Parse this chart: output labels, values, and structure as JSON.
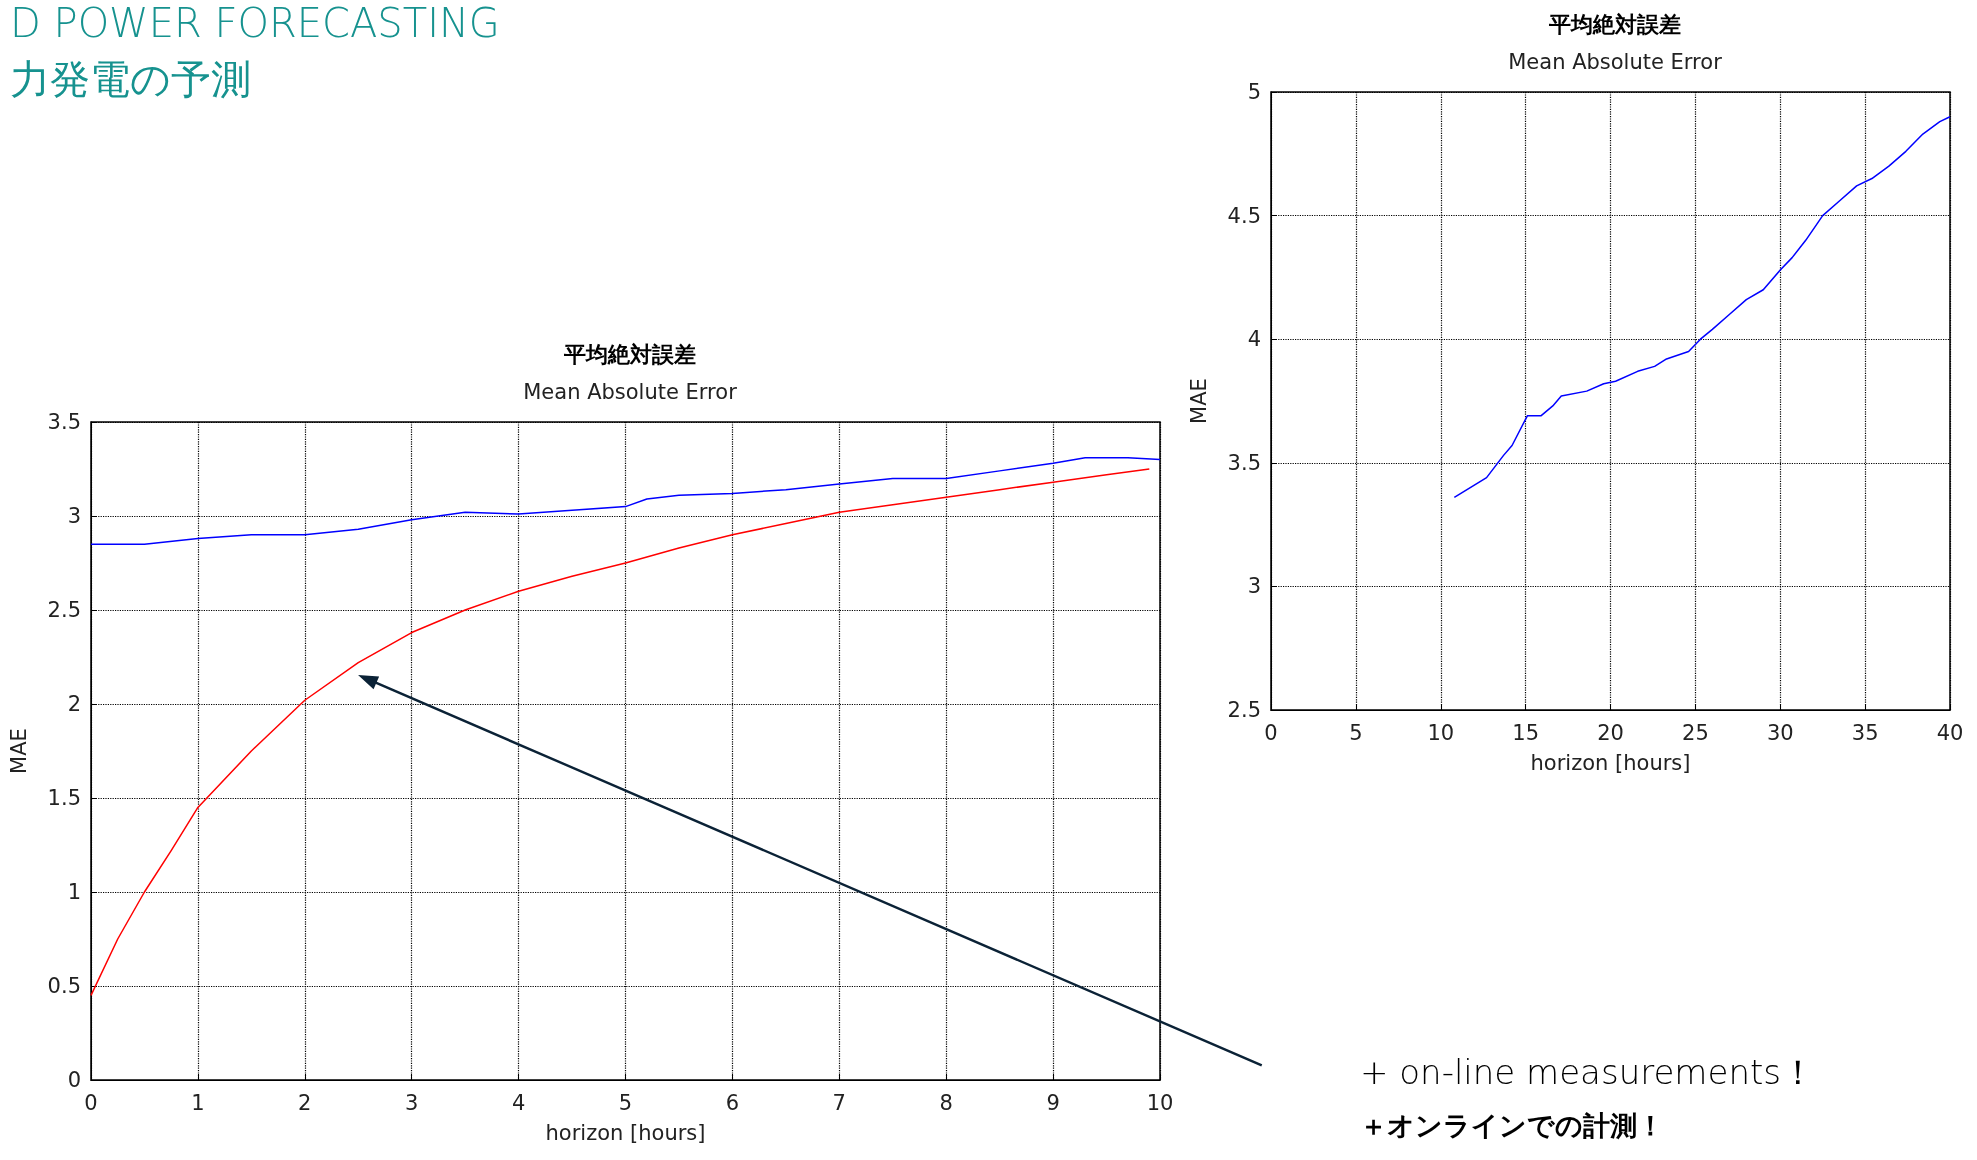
{
  "chart_data": [
    {
      "type": "other",
      "title": "D POWER FORECASTING",
      "subtitle": "力発電の予測"
    },
    {
      "type": "line",
      "title": "平均絶対誤差",
      "subtitle": "Mean Absolute Error",
      "xlabel": "horizon [hours]",
      "ylabel": "MAE",
      "xlim": [
        0,
        40
      ],
      "xticks": [
        0,
        5,
        10,
        15,
        20,
        25,
        30,
        35,
        40
      ],
      "ylim": [
        2.5,
        5
      ],
      "yticks": [
        2.5,
        3,
        3.5,
        4,
        4.5,
        5
      ],
      "grid": true,
      "marker": "none",
      "line_style": "solid",
      "series": [
        {
          "color": "#0000ff",
          "x": [
            10.8,
            12.7,
            13.7,
            14.2,
            15.1,
            15.9,
            16.6,
            17.1,
            18.6,
            19.6,
            20.3,
            21.6,
            22.6,
            23.3,
            24.6,
            25.3,
            26,
            27,
            28,
            29,
            30,
            30.7,
            31.5,
            32.5,
            33.5,
            34.5,
            35.4,
            36.4,
            37.4,
            38.4,
            39.4,
            40
          ],
          "values": [
            3.36,
            3.44,
            3.53,
            3.57,
            3.69,
            3.69,
            3.73,
            3.77,
            3.79,
            3.82,
            3.83,
            3.87,
            3.89,
            3.92,
            3.95,
            4.0,
            4.04,
            4.1,
            4.16,
            4.2,
            4.28,
            4.33,
            4.4,
            4.5,
            4.56,
            4.62,
            4.65,
            4.7,
            4.76,
            4.83,
            4.88,
            4.9
          ]
        }
      ]
    },
    {
      "type": "line",
      "title": "平均絶対誤差",
      "subtitle": "Mean Absolute Error",
      "xlabel": "horizon [hours]",
      "ylabel": "MAE",
      "xlim": [
        0,
        10
      ],
      "xticks": [
        0,
        1,
        2,
        3,
        4,
        5,
        6,
        7,
        8,
        9,
        10
      ],
      "ylim": [
        0,
        3.5
      ],
      "yticks": [
        0,
        0.5,
        1,
        1.5,
        2,
        2.5,
        3,
        3.5
      ],
      "grid": true,
      "marker": "none",
      "line_style": "solid",
      "annotations": [
        "+ on-line measurements！",
        "＋オンラインでの計測！"
      ],
      "series": [
        {
          "color": "#0000ff",
          "x": [
            0,
            0.5,
            1,
            1.5,
            2,
            2.5,
            3,
            3.5,
            4,
            4.5,
            5,
            5.2,
            5.5,
            6,
            6.5,
            7,
            7.5,
            8,
            8.5,
            9,
            9.3,
            9.7,
            10
          ],
          "values": [
            2.85,
            2.85,
            2.88,
            2.9,
            2.9,
            2.93,
            2.98,
            3.02,
            3.01,
            3.03,
            3.05,
            3.09,
            3.11,
            3.12,
            3.14,
            3.17,
            3.2,
            3.2,
            3.24,
            3.28,
            3.31,
            3.31,
            3.3
          ]
        },
        {
          "color": "#ff0000",
          "x": [
            0,
            0.25,
            0.5,
            0.75,
            1,
            1.5,
            2,
            2.5,
            3,
            3.5,
            4,
            4.5,
            5,
            5.5,
            6,
            6.5,
            7,
            7.5,
            8,
            8.5,
            9,
            9.5,
            9.9
          ],
          "values": [
            0.45,
            0.75,
            1.0,
            1.22,
            1.45,
            1.75,
            2.02,
            2.22,
            2.38,
            2.5,
            2.6,
            2.68,
            2.75,
            2.83,
            2.9,
            2.96,
            3.02,
            3.06,
            3.1,
            3.14,
            3.18,
            3.22,
            3.25
          ]
        }
      ]
    }
  ]
}
